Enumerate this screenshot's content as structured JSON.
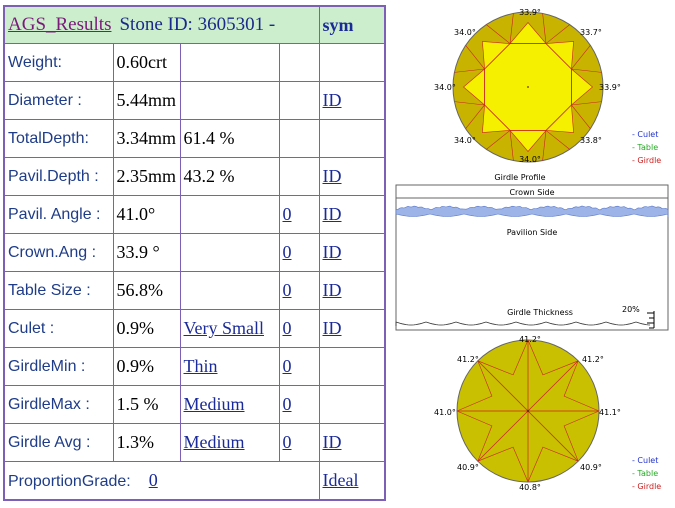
{
  "header": {
    "title_link": "AGS_Results",
    "stone_id": "Stone ID:  3605301 -",
    "sym": "sym"
  },
  "rows": [
    {
      "label": "Weight:",
      "value": "0.60crt",
      "extra": "",
      "link": "",
      "id": ""
    },
    {
      "label": "Diameter :",
      "value": "5.44mm",
      "extra": "",
      "link": "",
      "id": "ID"
    },
    {
      "label": "TotalDepth:",
      "value": "3.34mm",
      "extra": "61.4 %",
      "link": "",
      "id": ""
    },
    {
      "label": "Pavil.Depth :",
      "value": "2.35mm",
      "extra": "43.2 %",
      "link": "",
      "id": "ID"
    },
    {
      "label": "Pavil. Angle :",
      "value": "41.0°",
      "extra": "",
      "link": "0",
      "id": "ID"
    },
    {
      "label": "Crown.Ang :",
      "value": "33.9 °",
      "extra": "",
      "link": "0",
      "id": "ID"
    },
    {
      "label": "Table Size :",
      "value": "56.8%",
      "extra": "",
      "link": "0",
      "id": "ID"
    },
    {
      "label": "Culet :",
      "value": "0.9%",
      "extra_link": "Very Small",
      "link": "0",
      "id": "ID"
    },
    {
      "label": "GirdleMin :",
      "value": "0.9%",
      "extra_link": "Thin",
      "link": "0",
      "id": ""
    },
    {
      "label": "GirdleMax :",
      "value": "1.5 %",
      "extra_link": "Medium",
      "link": "0",
      "id": ""
    },
    {
      "label": "Girdle Avg :",
      "value": "1.3%",
      "extra_link": "Medium",
      "link": "0",
      "id": "ID"
    }
  ],
  "footer": {
    "label": "ProportionGrade:",
    "grade_link": "0",
    "cut": "Ideal"
  },
  "diagrams": {
    "crown": {
      "angles": {
        "top": "33.9°",
        "top_left": "34.0°",
        "top_right": "33.7°",
        "left": "34.0°",
        "right": "33.9°",
        "bottom_left": "34.0°",
        "bottom_right": "33.8°",
        "bottom": "34.0°"
      }
    },
    "pavilion": {
      "angles": {
        "top": "41.2°",
        "top_left": "41.2°",
        "top_right": "41.2°",
        "left": "41.0°",
        "right": "41.1°",
        "bottom_left": "40.9°",
        "bottom_right": "40.9°",
        "bottom": "40.8°"
      }
    },
    "legend": {
      "culet": "- Culet",
      "table": "- Table",
      "girdle": "- Girdle"
    },
    "legend_colors": {
      "culet": "#2233cc",
      "table": "#22aa22",
      "girdle": "#cc2222"
    },
    "profile": {
      "title": "Girdle Profile",
      "crown_side": "Crown Side",
      "pavilion_side": "Pavilion Side",
      "girdle_thickness": "Girdle Thickness",
      "thickness_pct": "20%"
    },
    "colors": {
      "facet_dark": "#c8b400",
      "facet_light": "#f5ef00",
      "pavilion_fill": "#c8c000",
      "lines": "#cc2222",
      "profile_fill": "#9db4e8",
      "outline": "#666666"
    }
  }
}
